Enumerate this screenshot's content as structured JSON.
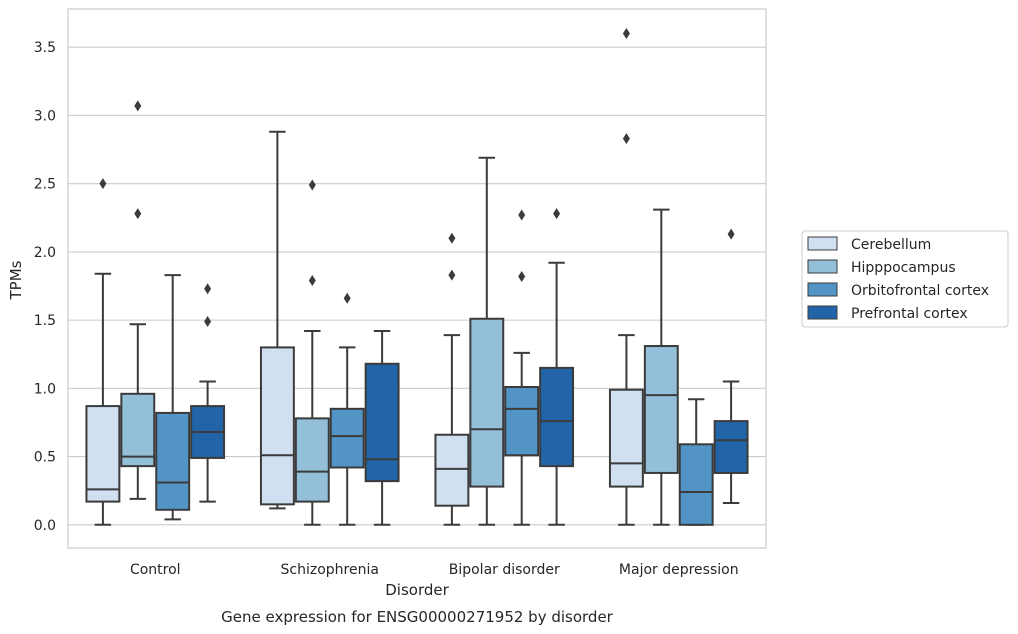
{
  "chart_data": {
    "type": "box",
    "title": "",
    "caption": "Gene expression for ENSG00000271952 by disorder",
    "xlabel": "Disorder",
    "ylabel": "TPMs",
    "ylim": [
      -0.17,
      3.78
    ],
    "yticks": [
      0.0,
      0.5,
      1.0,
      1.5,
      2.0,
      2.5,
      3.0,
      3.5
    ],
    "ytick_labels": [
      "0.0",
      "0.5",
      "1.0",
      "1.5",
      "2.0",
      "2.5",
      "3.0",
      "3.5"
    ],
    "grid": "horizontal",
    "legend_position": "right",
    "categories": [
      "Control",
      "Schizophrenia",
      "Bipolar disorder",
      "Major depression"
    ],
    "series": [
      {
        "name": "Cerebellum",
        "color": "#d0e0f0",
        "boxes": [
          {
            "q1": 0.17,
            "median": 0.26,
            "q3": 0.87,
            "whisker_low": 0.0,
            "whisker_high": 1.84,
            "outliers": [
              2.5
            ]
          },
          {
            "q1": 0.15,
            "median": 0.51,
            "q3": 1.3,
            "whisker_low": 0.12,
            "whisker_high": 2.88,
            "outliers": []
          },
          {
            "q1": 0.14,
            "median": 0.41,
            "q3": 0.66,
            "whisker_low": 0.0,
            "whisker_high": 1.39,
            "outliers": [
              1.83,
              2.1
            ]
          },
          {
            "q1": 0.28,
            "median": 0.45,
            "q3": 0.99,
            "whisker_low": 0.0,
            "whisker_high": 1.39,
            "outliers": [
              2.83,
              3.6
            ]
          }
        ]
      },
      {
        "name": "Hipppocampus",
        "color": "#93bfd8",
        "boxes": [
          {
            "q1": 0.43,
            "median": 0.5,
            "q3": 0.96,
            "whisker_low": 0.19,
            "whisker_high": 1.47,
            "outliers": [
              2.28,
              3.07
            ]
          },
          {
            "q1": 0.17,
            "median": 0.39,
            "q3": 0.78,
            "whisker_low": 0.0,
            "whisker_high": 1.42,
            "outliers": [
              1.79,
              2.49
            ]
          },
          {
            "q1": 0.28,
            "median": 0.7,
            "q3": 1.51,
            "whisker_low": 0.0,
            "whisker_high": 2.69,
            "outliers": []
          },
          {
            "q1": 0.38,
            "median": 0.95,
            "q3": 1.31,
            "whisker_low": 0.0,
            "whisker_high": 2.31,
            "outliers": []
          }
        ]
      },
      {
        "name": "Orbitofrontal cortex",
        "color": "#5194c5",
        "boxes": [
          {
            "q1": 0.11,
            "median": 0.31,
            "q3": 0.82,
            "whisker_low": 0.04,
            "whisker_high": 1.83,
            "outliers": []
          },
          {
            "q1": 0.42,
            "median": 0.65,
            "q3": 0.85,
            "whisker_low": 0.0,
            "whisker_high": 1.3,
            "outliers": [
              1.66
            ]
          },
          {
            "q1": 0.51,
            "median": 0.85,
            "q3": 1.01,
            "whisker_low": 0.0,
            "whisker_high": 1.26,
            "outliers": [
              1.82,
              2.27
            ]
          },
          {
            "q1": 0.0,
            "median": 0.24,
            "q3": 0.59,
            "whisker_low": 0.0,
            "whisker_high": 0.92,
            "outliers": []
          }
        ]
      },
      {
        "name": "Prefrontal cortex",
        "color": "#2165a8",
        "boxes": [
          {
            "q1": 0.49,
            "median": 0.68,
            "q3": 0.87,
            "whisker_low": 0.17,
            "whisker_high": 1.05,
            "outliers": [
              1.49,
              1.73
            ]
          },
          {
            "q1": 0.32,
            "median": 0.48,
            "q3": 1.18,
            "whisker_low": 0.0,
            "whisker_high": 1.42,
            "outliers": []
          },
          {
            "q1": 0.43,
            "median": 0.76,
            "q3": 1.15,
            "whisker_low": 0.0,
            "whisker_high": 1.92,
            "outliers": [
              2.28
            ]
          },
          {
            "q1": 0.38,
            "median": 0.62,
            "q3": 0.76,
            "whisker_low": 0.16,
            "whisker_high": 1.05,
            "outliers": [
              2.13
            ]
          }
        ]
      }
    ]
  }
}
